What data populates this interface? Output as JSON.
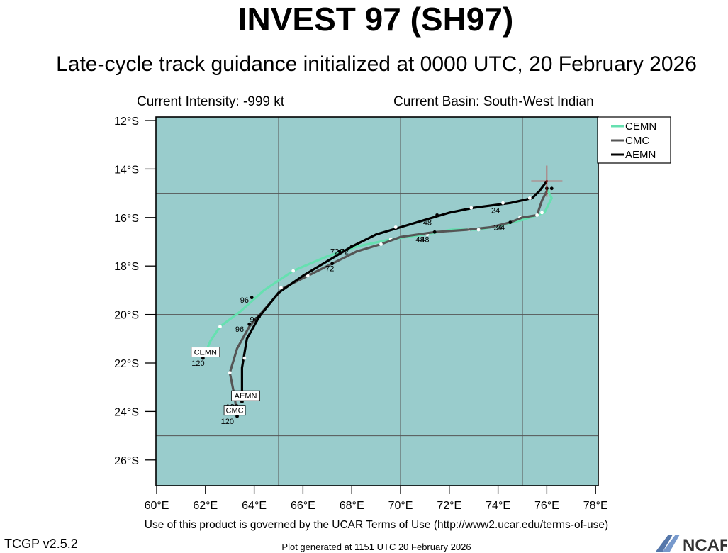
{
  "header": {
    "title": "INVEST 97 (SH97)",
    "subtitle": "Late-cycle track guidance initialized at 0000 UTC, 20 February 2026",
    "current_intensity": "Current Intensity: -999 kt",
    "current_basin": "Current Basin: South-West Indian"
  },
  "footer": {
    "terms": "Use of this product is governed by the UCAR Terms of Use (http://www2.ucar.edu/terms-of-use)",
    "version": "TCGP v2.5.2",
    "generated": "Plot generated at 1151 UTC   20 February 2026",
    "logo_text": "NCAR"
  },
  "map": {
    "lon_range": [
      60,
      78
    ],
    "lat_range": [
      -27,
      -12
    ],
    "ocean_color": "#99cccc",
    "x_ticks": [
      "60°E",
      "62°E",
      "64°E",
      "66°E",
      "68°E",
      "70°E",
      "72°E",
      "74°E",
      "76°E",
      "78°E"
    ],
    "y_ticks": [
      "12°S",
      "14°S",
      "16°S",
      "18°S",
      "20°S",
      "22°S",
      "24°S",
      "26°S"
    ],
    "initial_position": {
      "lon": 76.0,
      "lat": -14.5,
      "marker_color": "#cc2222"
    }
  },
  "chart_data": {
    "type": "map-track",
    "legend": [
      {
        "name": "CEMN",
        "color": "#66e0b0"
      },
      {
        "name": "CMC",
        "color": "#555555"
      },
      {
        "name": "AEMN",
        "color": "#000000"
      }
    ],
    "tracks": [
      {
        "name": "CEMN",
        "color": "#66e0b0",
        "end_label": "CEMN",
        "points": [
          [
            76.0,
            -14.8
          ],
          [
            76.2,
            -15.2
          ],
          [
            75.9,
            -15.8
          ],
          [
            75.0,
            -16.1
          ],
          [
            74.2,
            -16.3
          ],
          [
            73.2,
            -16.5
          ],
          [
            72.1,
            -16.5
          ],
          [
            71.0,
            -16.7
          ],
          [
            69.6,
            -16.9
          ],
          [
            68.2,
            -17.2
          ],
          [
            67.0,
            -17.6
          ],
          [
            65.6,
            -18.2
          ],
          [
            64.4,
            -19.0
          ],
          [
            63.4,
            -19.9
          ],
          [
            62.6,
            -20.5
          ],
          [
            62.2,
            -21.1
          ],
          [
            61.9,
            -21.8
          ]
        ],
        "markers": [
          {
            "lon": 75.8,
            "lat": -15.8,
            "color": "#ffffff"
          },
          {
            "lon": 74.9,
            "lat": -16.0,
            "color": "#ffffff"
          },
          {
            "lon": 73.2,
            "lat": -16.5,
            "color": "#ffffff"
          },
          {
            "lon": 72.8,
            "lat": -16.5,
            "color": "#ffffff"
          },
          {
            "lon": 71.1,
            "lat": -16.7,
            "color": "#ffffff"
          },
          {
            "lon": 69.6,
            "lat": -16.9,
            "color": "#ffffff"
          },
          {
            "lon": 67.5,
            "lat": -17.4,
            "color": "#000000"
          },
          {
            "lon": 65.6,
            "lat": -18.2,
            "color": "#ffffff"
          },
          {
            "lon": 63.9,
            "lat": -19.3,
            "color": "#000000"
          },
          {
            "lon": 62.6,
            "lat": -20.5,
            "color": "#ffffff"
          },
          {
            "lon": 61.9,
            "lat": -21.8,
            "color": "#000000"
          }
        ],
        "labels": [
          {
            "text": "24",
            "lon": 74.1,
            "lat": -16.4
          },
          {
            "text": "48",
            "lon": 71.0,
            "lat": -16.9
          },
          {
            "text": "72",
            "lon": 67.3,
            "lat": -17.4
          },
          {
            "text": "96",
            "lon": 63.6,
            "lat": -19.4
          },
          {
            "text": "120",
            "lon": 61.7,
            "lat": -22.0
          }
        ]
      },
      {
        "name": "CMC",
        "color": "#555555",
        "end_label": "CMC",
        "points": [
          [
            76.0,
            -14.9
          ],
          [
            75.8,
            -15.3
          ],
          [
            75.6,
            -15.9
          ],
          [
            75.0,
            -16.0
          ],
          [
            74.5,
            -16.2
          ],
          [
            73.7,
            -16.4
          ],
          [
            72.8,
            -16.5
          ],
          [
            71.4,
            -16.6
          ],
          [
            70.0,
            -16.8
          ],
          [
            69.2,
            -17.1
          ],
          [
            68.2,
            -17.4
          ],
          [
            67.2,
            -17.9
          ],
          [
            66.2,
            -18.4
          ],
          [
            65.2,
            -18.9
          ],
          [
            64.5,
            -19.7
          ],
          [
            63.8,
            -20.5
          ],
          [
            63.3,
            -21.4
          ],
          [
            63.0,
            -22.4
          ],
          [
            63.2,
            -23.4
          ],
          [
            63.3,
            -24.2
          ]
        ],
        "markers": [
          {
            "lon": 75.6,
            "lat": -15.9,
            "color": "#ffffff"
          },
          {
            "lon": 74.5,
            "lat": -16.2,
            "color": "#000000"
          },
          {
            "lon": 73.2,
            "lat": -16.5,
            "color": "#ffffff"
          },
          {
            "lon": 71.4,
            "lat": -16.6,
            "color": "#000000"
          },
          {
            "lon": 69.2,
            "lat": -17.1,
            "color": "#ffffff"
          },
          {
            "lon": 67.2,
            "lat": -17.9,
            "color": "#000000"
          },
          {
            "lon": 66.2,
            "lat": -18.4,
            "color": "#ffffff"
          },
          {
            "lon": 63.8,
            "lat": -20.4,
            "color": "#000000"
          },
          {
            "lon": 63.0,
            "lat": -22.4,
            "color": "#ffffff"
          },
          {
            "lon": 63.3,
            "lat": -24.2,
            "color": "#000000"
          }
        ],
        "labels": [
          {
            "text": "24",
            "lon": 74.0,
            "lat": -16.4
          },
          {
            "text": "48",
            "lon": 70.8,
            "lat": -16.9
          },
          {
            "text": "72",
            "lon": 67.1,
            "lat": -18.1
          },
          {
            "text": "96",
            "lon": 63.4,
            "lat": -20.6
          },
          {
            "text": "120",
            "lon": 62.9,
            "lat": -24.4
          }
        ]
      },
      {
        "name": "AEMN",
        "color": "#000000",
        "end_label": "AEMN",
        "points": [
          [
            76.0,
            -14.5
          ],
          [
            75.7,
            -14.9
          ],
          [
            75.4,
            -15.2
          ],
          [
            74.5,
            -15.4
          ],
          [
            73.0,
            -15.6
          ],
          [
            72.0,
            -15.8
          ],
          [
            71.0,
            -16.1
          ],
          [
            70.0,
            -16.4
          ],
          [
            69.0,
            -16.7
          ],
          [
            68.0,
            -17.2
          ],
          [
            67.0,
            -17.8
          ],
          [
            66.0,
            -18.4
          ],
          [
            65.0,
            -19.1
          ],
          [
            64.2,
            -20.1
          ],
          [
            63.7,
            -21.0
          ],
          [
            63.5,
            -22.2
          ],
          [
            63.5,
            -23.6
          ]
        ],
        "markers": [
          {
            "lon": 76.0,
            "lat": -14.8,
            "color": "#000000"
          },
          {
            "lon": 76.2,
            "lat": -14.8,
            "color": "#000000"
          },
          {
            "lon": 75.3,
            "lat": -15.2,
            "color": "#ffffff"
          },
          {
            "lon": 74.2,
            "lat": -15.4,
            "color": "#ffffff"
          },
          {
            "lon": 72.9,
            "lat": -15.6,
            "color": "#ffffff"
          },
          {
            "lon": 71.5,
            "lat": -15.9,
            "color": "#000000"
          },
          {
            "lon": 69.8,
            "lat": -16.4,
            "color": "#ffffff"
          },
          {
            "lon": 68.0,
            "lat": -17.2,
            "color": "#000000"
          },
          {
            "lon": 65.1,
            "lat": -18.9,
            "color": "#ffffff"
          },
          {
            "lon": 64.2,
            "lat": -20.1,
            "color": "#000000"
          },
          {
            "lon": 63.6,
            "lat": -21.8,
            "color": "#ffffff"
          },
          {
            "lon": 63.5,
            "lat": -23.6,
            "color": "#000000"
          }
        ],
        "labels": [
          {
            "text": "24",
            "lon": 73.9,
            "lat": -15.7
          },
          {
            "text": "48",
            "lon": 71.1,
            "lat": -16.2
          },
          {
            "text": "72",
            "lon": 67.7,
            "lat": -17.4
          },
          {
            "text": "96",
            "lon": 64.0,
            "lat": -20.2
          },
          {
            "text": "120",
            "lon": 63.1,
            "lat": -23.8
          }
        ]
      }
    ]
  }
}
